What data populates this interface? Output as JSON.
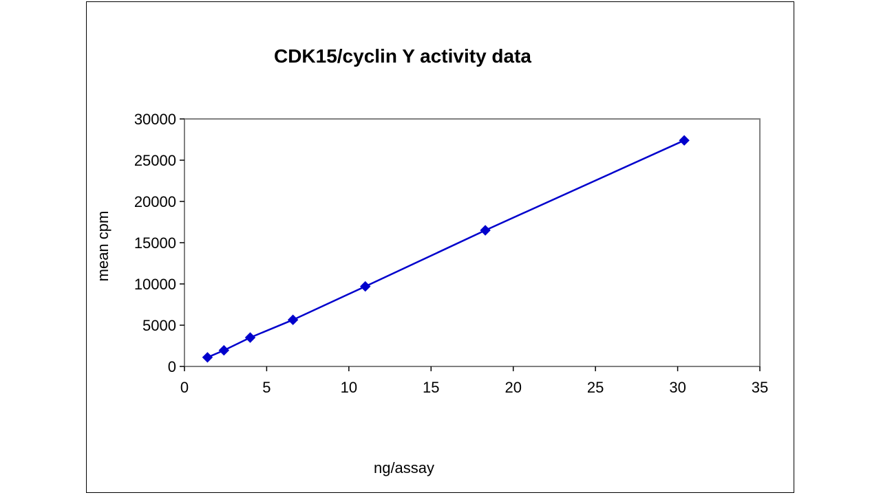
{
  "chart_data": {
    "type": "line",
    "title": "CDK15/cyclin Y activity data",
    "xlabel": "ng/assay",
    "ylabel": "mean cpm",
    "xlim": [
      0,
      35
    ],
    "ylim": [
      0,
      30000
    ],
    "x_ticks": [
      0,
      5,
      10,
      15,
      20,
      25,
      30,
      35
    ],
    "y_ticks": [
      0,
      5000,
      10000,
      15000,
      20000,
      25000,
      30000
    ],
    "x_tick_labels": [
      "0",
      "5",
      "10",
      "15",
      "20",
      "25",
      "30",
      "35"
    ],
    "y_tick_labels": [
      "0",
      "5000",
      "10000",
      "15000",
      "20000",
      "25000",
      "30000"
    ],
    "grid": false,
    "legend": "none",
    "series": [
      {
        "color": "#0000CC",
        "marker": "diamond",
        "x": [
          1.4,
          2.4,
          4.0,
          6.6,
          11.0,
          18.3,
          30.4
        ],
        "y": [
          1100,
          1950,
          3500,
          5650,
          9700,
          16500,
          27400
        ]
      }
    ]
  }
}
